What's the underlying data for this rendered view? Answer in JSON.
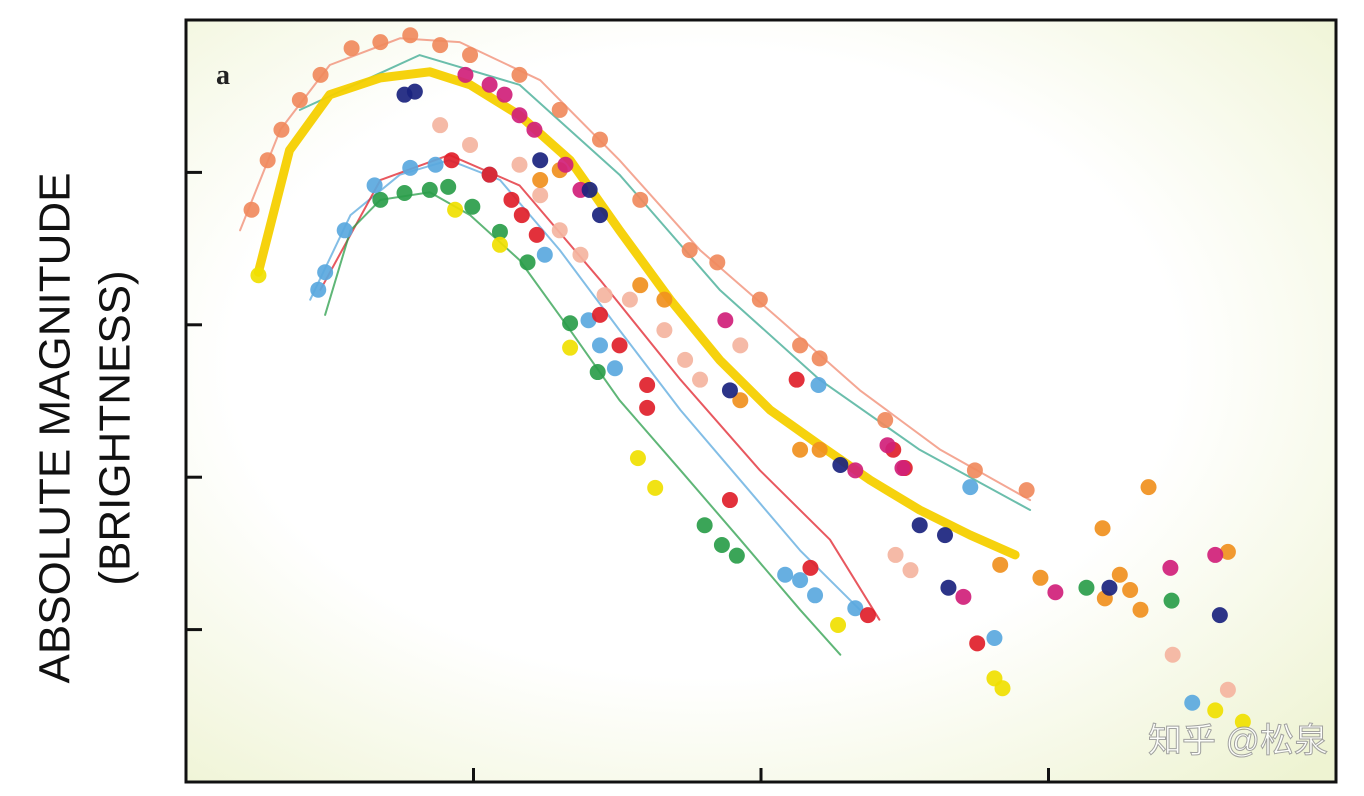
{
  "chart_data": {
    "type": "scatter",
    "annotation": "a",
    "ylabel": [
      "ABSOLUTE MAGNITUDE",
      "(BRIGHTNESS)"
    ],
    "watermark": "知乎 @松泉",
    "xlim": [
      0,
      100
    ],
    "ylim": [
      0,
      100
    ],
    "xticks": [
      25,
      50,
      75
    ],
    "yticks": [
      20,
      40,
      60,
      80
    ],
    "series": [
      {
        "type": "line",
        "color": "#f08a70",
        "x": [
          4.7,
          8.2,
          12.5,
          18.6,
          23.8,
          30.8,
          37.7,
          44.7,
          51.7,
          58.6,
          65.6,
          73.4
        ],
        "values": [
          72.4,
          85.6,
          94.1,
          97.6,
          97.1,
          92.1,
          81.6,
          69.8,
          60.6,
          51.4,
          43.6,
          37.0
        ]
      },
      {
        "type": "line",
        "color": "#3aa890",
        "x": [
          9.9,
          20.3,
          29.0,
          37.7,
          46.4,
          55.1,
          63.8,
          73.4
        ],
        "values": [
          88.2,
          95.4,
          91.5,
          79.7,
          64.6,
          52.8,
          43.6,
          35.7
        ]
      },
      {
        "type": "line",
        "color": "#5aa8de",
        "x": [
          10.8,
          14.3,
          18.6,
          22.9,
          27.3,
          32.5,
          37.7,
          43.0,
          48.2,
          53.4,
          58.6
        ],
        "values": [
          63.3,
          74.4,
          79.7,
          81.6,
          79.0,
          69.8,
          59.3,
          48.8,
          39.6,
          30.4,
          22.6
        ]
      },
      {
        "type": "line",
        "color": "#e0202a",
        "x": [
          11.7,
          16.9,
          22.9,
          29.0,
          36.0,
          43.0,
          49.9,
          56.0,
          60.3
        ],
        "values": [
          64.6,
          79.0,
          82.3,
          78.3,
          65.9,
          52.8,
          40.9,
          31.8,
          21.3
        ]
      },
      {
        "type": "line",
        "color": "#2a9d4a",
        "x": [
          12.1,
          14.3,
          16.9,
          21.2,
          24.7,
          29.0,
          33.4,
          37.7,
          43.0,
          48.2,
          53.4,
          56.9
        ],
        "values": [
          61.3,
          72.4,
          76.4,
          77.4,
          74.4,
          68.5,
          59.3,
          50.1,
          40.9,
          31.8,
          22.6,
          16.7
        ]
      },
      {
        "type": "line",
        "color": "#f5d000",
        "linewidth": 9,
        "x": [
          6.3,
          9.0,
          12.5,
          16.9,
          21.2,
          24.7,
          29.0,
          33.4,
          37.7,
          42.1,
          46.4,
          50.8,
          55.1,
          59.5,
          63.8,
          68.2,
          72.1
        ],
        "values": [
          66.9,
          82.9,
          90.2,
          92.4,
          93.2,
          91.5,
          87.5,
          81.6,
          72.4,
          63.3,
          55.4,
          48.8,
          44.2,
          39.6,
          35.7,
          32.4,
          29.8
        ]
      },
      {
        "type": "scatter",
        "color": "#f08a5d",
        "x": [
          5.7,
          7.1,
          8.3,
          9.9,
          11.7,
          14.4,
          16.9,
          19.5,
          22.1,
          24.7,
          29.0,
          32.5,
          36.0,
          39.5,
          43.8,
          46.2,
          49.9,
          53.4,
          55.1,
          60.8,
          68.6,
          73.1
        ],
        "values": [
          75.1,
          81.6,
          85.6,
          89.5,
          92.8,
          96.3,
          97.1,
          98.0,
          96.7,
          95.4,
          92.8,
          88.2,
          84.3,
          76.4,
          69.8,
          68.2,
          63.3,
          57.3,
          55.6,
          47.5,
          40.9,
          38.3
        ]
      },
      {
        "type": "scatter",
        "color": "#f4b4a0",
        "x": [
          22.1,
          24.7,
          29.0,
          30.8,
          32.5,
          34.3,
          36.4,
          38.6,
          41.6,
          43.4,
          44.7,
          48.2,
          61.7,
          63.0,
          85.8,
          90.6
        ],
        "values": [
          86.2,
          83.6,
          81.0,
          77.0,
          72.4,
          69.2,
          63.9,
          63.3,
          59.3,
          55.4,
          52.8,
          57.3,
          29.8,
          27.8,
          16.7,
          12.1
        ]
      },
      {
        "type": "scatter",
        "color": "#2a9d4a",
        "x": [
          16.9,
          19.0,
          21.2,
          22.8,
          24.9,
          27.3,
          29.7,
          33.4,
          35.8,
          45.1,
          46.6,
          47.9,
          78.3,
          85.7
        ],
        "values": [
          76.4,
          77.3,
          77.7,
          78.1,
          75.5,
          72.2,
          68.2,
          60.2,
          53.8,
          33.7,
          31.1,
          29.7,
          25.5,
          23.8
        ]
      },
      {
        "type": "scatter",
        "color": "#5aa8de",
        "x": [
          11.5,
          12.1,
          13.8,
          16.4,
          19.5,
          21.7,
          26.4,
          31.2,
          35.0,
          36.0,
          37.3,
          52.1,
          53.4,
          54.7,
          58.2,
          68.2,
          70.3,
          87.5,
          55.0
        ],
        "values": [
          64.6,
          66.9,
          72.4,
          78.3,
          80.6,
          81.0,
          79.7,
          69.2,
          60.6,
          57.3,
          54.3,
          27.2,
          26.5,
          24.5,
          22.8,
          38.7,
          18.9,
          10.4,
          52.1
        ]
      },
      {
        "type": "scatter",
        "color": "#e0202a",
        "x": [
          23.1,
          26.4,
          28.3,
          29.2,
          30.5,
          36.0,
          37.7,
          40.1,
          40.1,
          47.3,
          54.3,
          59.3,
          53.1,
          62.5,
          61.5,
          68.8
        ],
        "values": [
          81.6,
          79.7,
          76.4,
          74.4,
          71.8,
          61.3,
          57.3,
          52.1,
          49.1,
          37.0,
          28.1,
          21.9,
          52.8,
          41.2,
          43.6,
          18.2
        ]
      },
      {
        "type": "scatter",
        "color": "#f0901e",
        "x": [
          30.8,
          32.5,
          39.5,
          41.6,
          48.2,
          53.4,
          55.1,
          70.8,
          74.3,
          79.9,
          81.2,
          82.1,
          83.0,
          83.7,
          90.6,
          79.7
        ],
        "values": [
          79.0,
          80.3,
          65.2,
          63.3,
          50.1,
          43.6,
          43.6,
          28.5,
          26.8,
          24.1,
          27.2,
          25.2,
          22.6,
          38.7,
          30.2,
          33.3
        ]
      },
      {
        "type": "scatter",
        "color": "#d0207a",
        "x": [
          24.3,
          26.4,
          27.7,
          29.0,
          30.3,
          33.0,
          34.3,
          61.0,
          62.3,
          58.2,
          67.6,
          75.6,
          85.6,
          89.5,
          46.9
        ],
        "values": [
          92.8,
          91.5,
          90.2,
          87.5,
          85.6,
          81.0,
          77.7,
          44.2,
          41.2,
          40.9,
          24.3,
          24.9,
          28.1,
          29.8,
          60.6
        ]
      },
      {
        "type": "scatter",
        "color": "#1a237e",
        "x": [
          19.0,
          19.9,
          30.8,
          35.1,
          36.0,
          47.3,
          56.9,
          63.8,
          66.0,
          66.3,
          80.3,
          89.9
        ],
        "values": [
          90.2,
          90.6,
          81.6,
          77.7,
          74.4,
          51.4,
          41.6,
          33.7,
          32.4,
          25.5,
          25.5,
          21.9
        ]
      },
      {
        "type": "scatter",
        "color": "#f0e000",
        "x": [
          6.3,
          23.4,
          27.3,
          33.4,
          39.3,
          40.8,
          56.7,
          70.3,
          71.0,
          89.5,
          91.9
        ],
        "values": [
          66.5,
          75.1,
          70.5,
          57.0,
          42.5,
          38.6,
          20.6,
          13.6,
          12.3,
          9.4,
          7.9
        ]
      }
    ]
  }
}
